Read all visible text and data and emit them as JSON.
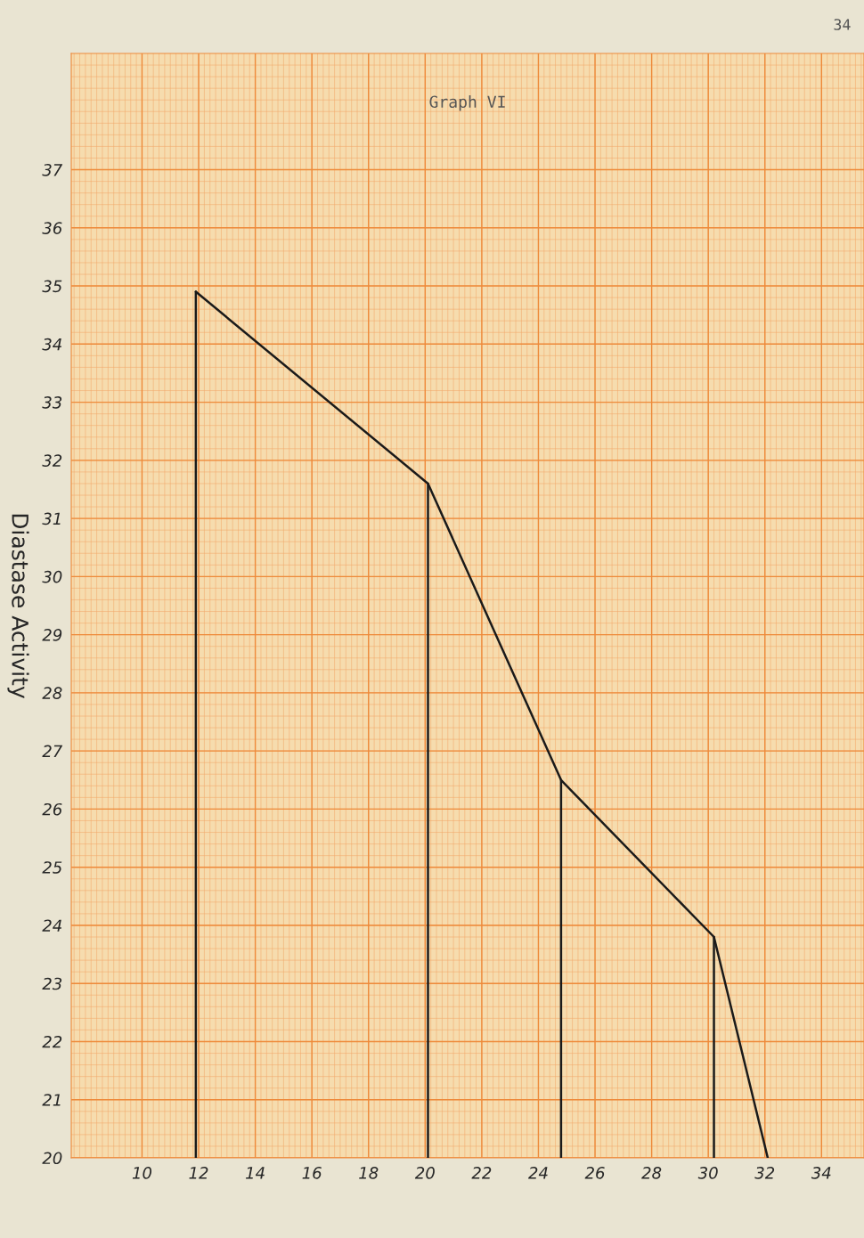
{
  "chart_data": {
    "type": "line",
    "title": "Graph VI",
    "ylabel": "Diastase Activity",
    "annotations": [
      "34"
    ],
    "xlim": [
      7.5,
      35.5
    ],
    "ylim": [
      20,
      39
    ],
    "xticks": [
      10,
      12,
      14,
      16,
      18,
      20,
      22,
      24,
      26,
      28,
      30,
      32,
      34
    ],
    "yticks": [
      20,
      21,
      22,
      23,
      24,
      25,
      26,
      27,
      28,
      29,
      30,
      31,
      32,
      33,
      34,
      35,
      36,
      37
    ],
    "grid": true,
    "marker": "none",
    "line_style": "solid",
    "series": [
      {
        "color": "#1a1a1a",
        "x": [
          11.9,
          20.1,
          24.8,
          30.2,
          32.1
        ],
        "values": [
          34.9,
          31.6,
          26.5,
          23.8,
          20
        ]
      },
      {
        "color": "#1a1a1a",
        "x": [
          11.9,
          11.9
        ],
        "values": [
          20,
          34.9
        ]
      },
      {
        "color": "#1a1a1a",
        "x": [
          20.1,
          20.1
        ],
        "values": [
          20,
          31.6
        ]
      },
      {
        "color": "#1a1a1a",
        "x": [
          24.8,
          24.8
        ],
        "values": [
          20,
          26.5
        ]
      },
      {
        "color": "#1a1a1a",
        "x": [
          30.2,
          30.2
        ],
        "values": [
          20,
          23.8
        ]
      }
    ]
  }
}
